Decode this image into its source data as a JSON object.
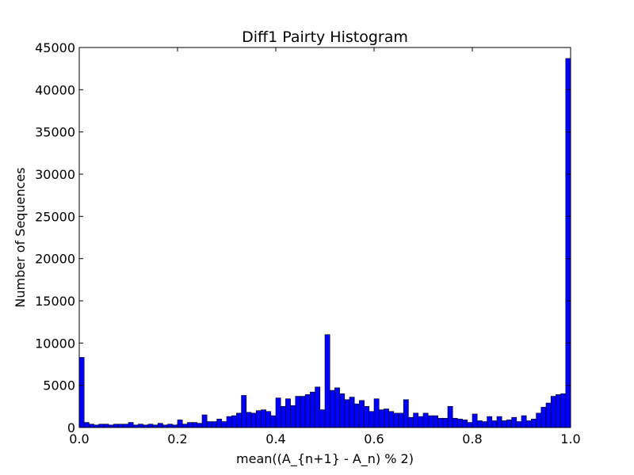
{
  "colors": {
    "bar_fill": "#0000ff",
    "bar_edge": "#000000",
    "axes": "#000000",
    "background": "#ffffff"
  },
  "chart_data": {
    "type": "bar",
    "title": "Diff1 Pairty Histogram",
    "xlabel": "mean((A_{n+1} - A_n) % 2)",
    "ylabel": "Number of Sequences",
    "xlim": [
      0.0,
      1.0
    ],
    "ylim": [
      0,
      45000
    ],
    "bin_width": 0.01,
    "grid": false,
    "x_ticks": [
      "0.0",
      "0.2",
      "0.4",
      "0.6",
      "0.8",
      "1.0"
    ],
    "y_ticks": [
      "0",
      "5000",
      "10000",
      "15000",
      "20000",
      "25000",
      "30000",
      "35000",
      "40000",
      "45000"
    ],
    "bin_starts": [
      0.0,
      0.01,
      0.02,
      0.03,
      0.04,
      0.05,
      0.06,
      0.07,
      0.08,
      0.09,
      0.1,
      0.11,
      0.12,
      0.13,
      0.14,
      0.15,
      0.16,
      0.17,
      0.18,
      0.19,
      0.2,
      0.21,
      0.22,
      0.23,
      0.24,
      0.25,
      0.26,
      0.27,
      0.28,
      0.29,
      0.3,
      0.31,
      0.32,
      0.33,
      0.34,
      0.35,
      0.36,
      0.37,
      0.38,
      0.39,
      0.4,
      0.41,
      0.42,
      0.43,
      0.44,
      0.45,
      0.46,
      0.47,
      0.48,
      0.49,
      0.5,
      0.51,
      0.52,
      0.53,
      0.54,
      0.55,
      0.56,
      0.57,
      0.58,
      0.59,
      0.6,
      0.61,
      0.62,
      0.63,
      0.64,
      0.65,
      0.66,
      0.67,
      0.68,
      0.69,
      0.7,
      0.71,
      0.72,
      0.73,
      0.74,
      0.75,
      0.76,
      0.77,
      0.78,
      0.79,
      0.8,
      0.81,
      0.82,
      0.83,
      0.84,
      0.85,
      0.86,
      0.87,
      0.88,
      0.89,
      0.9,
      0.91,
      0.92,
      0.93,
      0.94,
      0.95,
      0.96,
      0.97,
      0.98,
      0.99
    ],
    "values": [
      8300,
      600,
      400,
      300,
      400,
      400,
      300,
      400,
      400,
      400,
      600,
      300,
      400,
      300,
      400,
      300,
      500,
      300,
      400,
      300,
      900,
      400,
      600,
      600,
      500,
      1500,
      700,
      700,
      1000,
      700,
      1300,
      1400,
      1700,
      3800,
      1800,
      1700,
      2000,
      2100,
      1900,
      1400,
      3500,
      2500,
      3400,
      2600,
      3700,
      3700,
      3900,
      4200,
      4800,
      2100,
      11000,
      4400,
      4700,
      4000,
      3300,
      3600,
      2800,
      3200,
      2500,
      1900,
      3400,
      2100,
      2200,
      1900,
      1700,
      1700,
      3300,
      1200,
      1700,
      1300,
      1700,
      1400,
      1400,
      1100,
      1100,
      2500,
      1100,
      1000,
      900,
      600,
      1600,
      800,
      700,
      1300,
      800,
      1300,
      800,
      900,
      1200,
      700,
      1400,
      800,
      1000,
      1700,
      2400,
      2900,
      3700,
      3900,
      4000,
      43700
    ]
  }
}
